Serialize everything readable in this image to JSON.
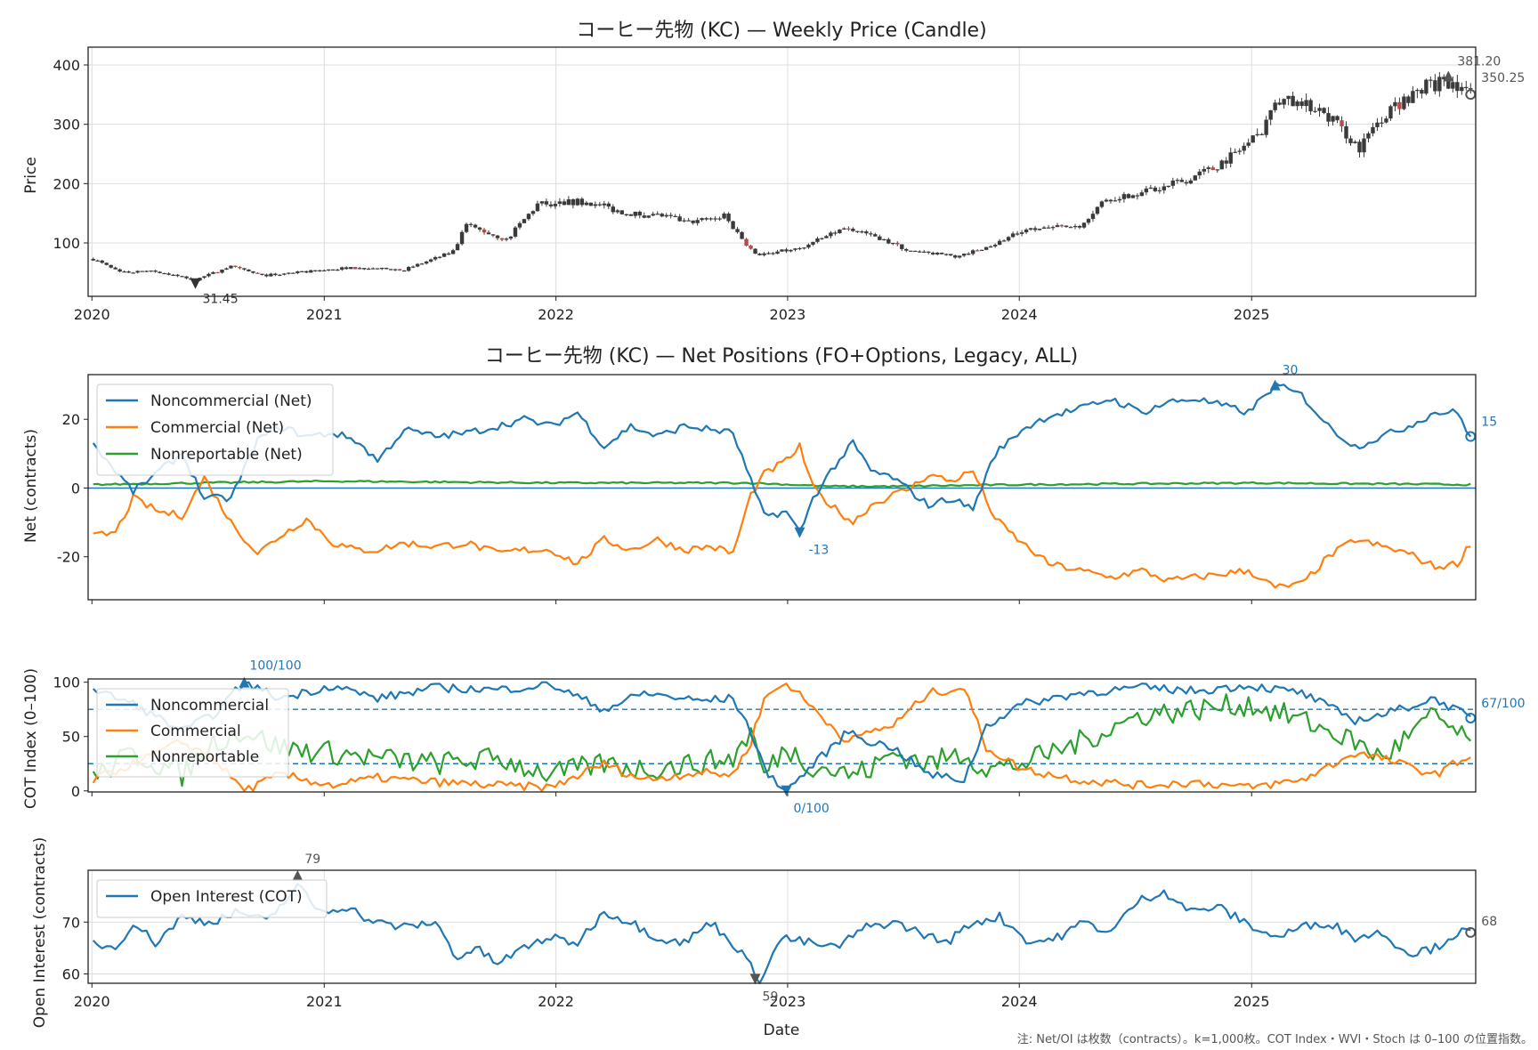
{
  "colors": {
    "noncommercial": "#1f77b4",
    "commercial": "#ff7f0e",
    "nonreportable": "#2ca02c",
    "candle_up": "#2f6f5e",
    "candle_down": "#b84a4a",
    "candle_body": "#3a3a3a",
    "annotation": "#555555",
    "grid": "#dddddd"
  },
  "footnote": "注: Net/OI は枚数（contracts）。k=1,000枚。COT Index・WVI・Stoch は 0–100 の位置指数。",
  "x_axis_label": "Date",
  "chart_data": [
    {
      "type": "candlestick",
      "title": "コーヒー先物 (KC) — Weekly Price (Candle)",
      "ylabel": "Price",
      "xlabel": "",
      "x_tick_labels": [
        "2020",
        "2021",
        "2022",
        "2023",
        "2024",
        "2025"
      ],
      "y_ticks": [
        100,
        200,
        300,
        400
      ],
      "xlim": [
        "2019-12-26",
        "2025-12-20"
      ],
      "ylim": [
        10,
        430
      ],
      "grid": true,
      "anchors": {
        "dates": [
          "2020-01-03",
          "2020-02-14",
          "2020-04-10",
          "2020-06-12",
          "2020-08-07",
          "2020-09-25",
          "2020-11-20",
          "2021-02-05",
          "2021-05-07",
          "2021-07-23",
          "2021-08-13",
          "2021-10-15",
          "2021-12-03",
          "2022-02-18",
          "2022-04-22",
          "2022-06-17",
          "2022-07-29",
          "2022-09-23",
          "2022-11-11",
          "2023-01-20",
          "2023-03-31",
          "2023-05-12",
          "2023-07-14",
          "2023-09-22",
          "2023-11-17",
          "2024-01-05",
          "2024-04-05",
          "2024-05-17",
          "2024-08-09",
          "2024-11-01",
          "2025-01-10",
          "2025-02-14",
          "2025-04-18",
          "2025-06-20",
          "2025-07-25",
          "2025-09-19",
          "2025-11-14",
          "2025-12-12"
        ],
        "closes": [
          73,
          50,
          52,
          38,
          60,
          45,
          50,
          58,
          55,
          85,
          130,
          105,
          165,
          170,
          150,
          145,
          135,
          145,
          80,
          90,
          125,
          115,
          85,
          78,
          95,
          120,
          130,
          175,
          190,
          225,
          280,
          340,
          330,
          260,
          310,
          360,
          375,
          350
        ]
      },
      "annotations": [
        {
          "label": "31.45",
          "date": "2020-06-12",
          "value": 31.45,
          "kind": "min"
        },
        {
          "label": "381.20",
          "date": "2025-11-07",
          "value": 381.2,
          "kind": "max"
        },
        {
          "label": "350.25",
          "date": "2025-12-12",
          "value": 350.25,
          "kind": "last"
        }
      ]
    },
    {
      "type": "line",
      "title": "コーヒー先物 (KC) — Net Positions (FO+Options, Legacy, ALL)",
      "ylabel": "Net (contracts)",
      "y_ticks": [
        -20,
        0,
        20
      ],
      "xlim": [
        "2019-12-26",
        "2025-12-20"
      ],
      "ylim": [
        -32.5,
        33
      ],
      "zero_line": true,
      "legend_position": "upper left",
      "series": [
        {
          "name": "Noncommercial (Net)",
          "color_key": "noncommercial",
          "dates": [
            "2020-01-03",
            "2020-02-07",
            "2020-03-06",
            "2020-04-17",
            "2020-05-22",
            "2020-06-26",
            "2020-08-07",
            "2020-09-18",
            "2020-10-23",
            "2020-12-04",
            "2021-01-15",
            "2021-02-19",
            "2021-03-26",
            "2021-05-07",
            "2021-06-25",
            "2021-08-13",
            "2021-10-01",
            "2021-11-12",
            "2021-12-24",
            "2022-02-04",
            "2022-03-18",
            "2022-04-29",
            "2022-06-10",
            "2022-07-22",
            "2022-09-02",
            "2022-10-07",
            "2022-11-04",
            "2022-11-25",
            "2022-12-30",
            "2023-01-20",
            "2023-02-10",
            "2023-03-10",
            "2023-04-14",
            "2023-05-12",
            "2023-06-16",
            "2023-07-14",
            "2023-08-11",
            "2023-09-15",
            "2023-10-20",
            "2023-11-24",
            "2024-01-05",
            "2024-02-16",
            "2024-04-05",
            "2024-05-24",
            "2024-07-12",
            "2024-08-23",
            "2024-10-04",
            "2024-11-15",
            "2024-12-27",
            "2025-02-07",
            "2025-03-21",
            "2025-05-02",
            "2025-06-13",
            "2025-07-25",
            "2025-09-05",
            "2025-10-17",
            "2025-11-21",
            "2025-12-12"
          ],
          "values": [
            13,
            5,
            -1,
            5,
            10,
            -3,
            -3,
            14,
            18,
            15,
            16,
            14,
            8,
            17,
            15,
            16,
            18,
            20,
            18,
            22,
            12,
            18,
            15,
            18,
            17,
            16,
            2,
            -8,
            -7,
            -13,
            -3,
            5,
            13,
            5,
            3,
            -1,
            -5,
            -3,
            -6,
            10,
            17,
            21,
            23,
            26,
            22,
            25,
            26,
            24,
            22,
            30,
            27,
            18,
            12,
            15,
            18,
            22,
            22,
            15
          ]
        },
        {
          "name": "Commercial (Net)",
          "color_key": "commercial",
          "dates": [
            "2020-01-03",
            "2020-02-07",
            "2020-03-06",
            "2020-04-17",
            "2020-05-22",
            "2020-06-26",
            "2020-08-07",
            "2020-09-18",
            "2020-10-23",
            "2020-12-04",
            "2021-01-15",
            "2021-02-19",
            "2021-03-26",
            "2021-05-07",
            "2021-06-25",
            "2021-08-13",
            "2021-10-01",
            "2021-11-12",
            "2021-12-24",
            "2022-02-04",
            "2022-03-18",
            "2022-04-29",
            "2022-06-10",
            "2022-07-22",
            "2022-09-02",
            "2022-10-07",
            "2022-11-04",
            "2022-11-25",
            "2022-12-30",
            "2023-01-20",
            "2023-02-10",
            "2023-03-10",
            "2023-04-14",
            "2023-05-12",
            "2023-06-16",
            "2023-07-14",
            "2023-08-11",
            "2023-09-15",
            "2023-10-20",
            "2023-11-24",
            "2024-01-05",
            "2024-02-16",
            "2024-04-05",
            "2024-05-24",
            "2024-07-12",
            "2024-08-23",
            "2024-10-04",
            "2024-11-15",
            "2024-12-27",
            "2025-02-07",
            "2025-03-21",
            "2025-05-02",
            "2025-06-13",
            "2025-07-25",
            "2025-09-05",
            "2025-10-17",
            "2025-11-21",
            "2025-12-12"
          ],
          "values": [
            -14,
            -13,
            -3,
            -7,
            -8,
            3,
            -10,
            -19,
            -14,
            -9,
            -16,
            -18,
            -18,
            -16,
            -17,
            -16,
            -19,
            -18,
            -18,
            -22,
            -15,
            -18,
            -15,
            -18,
            -17,
            -19,
            -2,
            4,
            8,
            12,
            0,
            -5,
            -10,
            -5,
            -2,
            0,
            4,
            2,
            5,
            -9,
            -16,
            -22,
            -24,
            -26,
            -24,
            -27,
            -26,
            -25,
            -24,
            -29,
            -28,
            -20,
            -15,
            -17,
            -19,
            -23,
            -22,
            -16
          ]
        },
        {
          "name": "Nonreportable (Net)",
          "color_key": "nonreportable",
          "dates": [
            "2020-01-03",
            "2020-06-26",
            "2021-01-15",
            "2022-01-07",
            "2022-11-04",
            "2023-03-10",
            "2023-06-16",
            "2024-01-05",
            "2025-01-03",
            "2025-12-12"
          ],
          "values": [
            1,
            1.5,
            2,
            1.5,
            1.5,
            0.5,
            0.5,
            1,
            1.5,
            1
          ]
        }
      ],
      "annotations": [
        {
          "label": "30",
          "date": "2025-02-07",
          "value": 30,
          "series": "Noncommercial (Net)"
        },
        {
          "label": "-13",
          "date": "2023-01-20",
          "value": -13,
          "series": "Noncommercial (Net)"
        },
        {
          "label": "15",
          "date": "2025-12-12",
          "value": 15,
          "series": "Noncommercial (Net)"
        }
      ]
    },
    {
      "type": "line",
      "title": "",
      "ylabel": "COT Index (0–100)",
      "y_ticks": [
        0,
        50,
        100
      ],
      "xlim": [
        "2019-12-26",
        "2025-12-20"
      ],
      "ylim": [
        -1,
        103
      ],
      "hlines": [
        25,
        75
      ],
      "legend_position": "upper left",
      "series": [
        {
          "name": "Noncommercial",
          "color_key": "noncommercial",
          "dates": [
            "2020-01-03",
            "2020-03-06",
            "2020-05-22",
            "2020-07-10",
            "2020-08-28",
            "2020-10-23",
            "2021-01-15",
            "2021-03-26",
            "2021-06-25",
            "2021-10-01",
            "2021-12-24",
            "2022-03-18",
            "2022-05-20",
            "2022-08-12",
            "2022-10-07",
            "2022-11-04",
            "2022-11-25",
            "2022-12-30",
            "2023-02-03",
            "2023-04-07",
            "2023-05-12",
            "2023-06-16",
            "2023-08-11",
            "2023-10-06",
            "2023-11-10",
            "2024-01-05",
            "2024-04-05",
            "2024-07-12",
            "2024-10-04",
            "2024-12-27",
            "2025-03-21",
            "2025-06-13",
            "2025-07-25",
            "2025-10-17",
            "2025-12-12"
          ],
          "values": [
            93,
            80,
            55,
            70,
            100,
            85,
            97,
            85,
            95,
            93,
            98,
            75,
            90,
            83,
            85,
            55,
            20,
            0,
            20,
            55,
            45,
            40,
            15,
            10,
            60,
            80,
            90,
            95,
            92,
            97,
            90,
            65,
            70,
            85,
            67
          ]
        },
        {
          "name": "Commercial",
          "color_key": "commercial",
          "dates": [
            "2020-01-03",
            "2020-03-06",
            "2020-05-22",
            "2020-07-10",
            "2020-08-28",
            "2020-10-23",
            "2021-01-15",
            "2021-03-26",
            "2021-06-25",
            "2021-10-01",
            "2021-12-24",
            "2022-03-18",
            "2022-05-20",
            "2022-08-12",
            "2022-10-07",
            "2022-11-04",
            "2022-11-25",
            "2022-12-30",
            "2023-02-03",
            "2023-04-07",
            "2023-05-12",
            "2023-06-16",
            "2023-08-11",
            "2023-10-06",
            "2023-11-10",
            "2024-01-05",
            "2024-04-05",
            "2024-07-12",
            "2024-10-04",
            "2024-12-27",
            "2025-03-21",
            "2025-06-13",
            "2025-07-25",
            "2025-10-17",
            "2025-12-12"
          ],
          "values": [
            10,
            25,
            45,
            30,
            0,
            15,
            5,
            12,
            8,
            5,
            3,
            25,
            10,
            17,
            15,
            45,
            85,
            100,
            80,
            45,
            55,
            60,
            90,
            95,
            40,
            20,
            10,
            5,
            8,
            3,
            10,
            35,
            30,
            15,
            33
          ]
        },
        {
          "name": "Nonreportable",
          "color_key": "nonreportable",
          "dates": [
            "2020-01-03",
            "2020-03-06",
            "2020-05-22",
            "2020-07-10",
            "2020-08-28",
            "2020-10-23",
            "2021-01-15",
            "2021-03-26",
            "2021-06-25",
            "2021-10-01",
            "2021-12-24",
            "2022-03-18",
            "2022-05-20",
            "2022-08-12",
            "2022-10-07",
            "2022-11-04",
            "2022-11-25",
            "2022-12-30",
            "2023-02-03",
            "2023-04-07",
            "2023-05-12",
            "2023-06-16",
            "2023-08-11",
            "2023-10-06",
            "2023-11-10",
            "2024-01-05",
            "2024-04-05",
            "2024-07-12",
            "2024-10-04",
            "2024-12-27",
            "2025-03-21",
            "2025-06-13",
            "2025-07-25",
            "2025-10-17",
            "2025-12-12"
          ],
          "values": [
            12,
            35,
            15,
            45,
            55,
            40,
            35,
            30,
            25,
            30,
            15,
            25,
            20,
            25,
            30,
            55,
            15,
            40,
            25,
            15,
            20,
            35,
            25,
            35,
            20,
            25,
            45,
            70,
            75,
            80,
            65,
            45,
            30,
            70,
            42
          ]
        }
      ],
      "annotations": [
        {
          "label": "100/100",
          "date": "2020-08-28",
          "value": 100,
          "series": "Noncommercial"
        },
        {
          "label": "0/100",
          "date": "2022-12-30",
          "value": 0,
          "series": "Noncommercial"
        },
        {
          "label": "67/100",
          "date": "2025-12-12",
          "value": 67,
          "series": "Noncommercial"
        }
      ]
    },
    {
      "type": "line",
      "title": "",
      "ylabel": "Open Interest (contracts)",
      "xlabel": "Date",
      "x_tick_labels": [
        "2020",
        "2021",
        "2022",
        "2023",
        "2024",
        "2025"
      ],
      "y_ticks": [
        60,
        70
      ],
      "xlim": [
        "2019-12-26",
        "2025-12-20"
      ],
      "ylim": [
        58.2,
        80
      ],
      "legend_position": "upper left",
      "series": [
        {
          "name": "Open Interest (COT)",
          "color_key": "noncommercial",
          "dates": [
            "2020-01-03",
            "2020-02-07",
            "2020-03-06",
            "2020-04-10",
            "2020-05-22",
            "2020-07-03",
            "2020-08-21",
            "2020-10-02",
            "2020-11-20",
            "2020-12-25",
            "2021-02-05",
            "2021-03-19",
            "2021-05-07",
            "2021-06-25",
            "2021-07-30",
            "2021-08-27",
            "2021-10-01",
            "2021-11-12",
            "2021-12-17",
            "2022-02-04",
            "2022-03-18",
            "2022-04-29",
            "2022-06-10",
            "2022-07-22",
            "2022-09-02",
            "2022-10-14",
            "2022-11-18",
            "2022-12-23",
            "2023-02-03",
            "2023-03-17",
            "2023-05-05",
            "2023-06-16",
            "2023-07-28",
            "2023-09-08",
            "2023-10-20",
            "2023-12-01",
            "2024-01-19",
            "2024-03-01",
            "2024-04-12",
            "2024-05-24",
            "2024-07-05",
            "2024-08-16",
            "2024-09-27",
            "2024-11-08",
            "2024-12-20",
            "2025-02-07",
            "2025-03-21",
            "2025-05-02",
            "2025-06-13",
            "2025-07-25",
            "2025-09-05",
            "2025-10-17",
            "2025-11-21",
            "2025-12-12"
          ],
          "values": [
            66,
            65,
            70,
            66,
            71,
            70,
            72,
            70,
            77,
            72,
            73,
            70,
            69,
            70,
            63,
            65,
            62,
            65,
            67,
            66,
            72,
            70,
            67,
            66,
            70,
            65,
            59,
            67,
            66,
            65,
            69,
            70,
            68,
            66,
            70,
            71,
            66,
            67,
            70,
            68,
            74,
            76,
            72,
            73,
            70,
            67,
            69,
            70,
            67,
            68,
            64,
            65,
            68,
            68
          ]
        }
      ],
      "annotations": [
        {
          "label": "79",
          "date": "2020-11-20",
          "value": 79,
          "kind": "max"
        },
        {
          "label": "59",
          "date": "2022-11-11",
          "value": 59,
          "kind": "min"
        },
        {
          "label": "68",
          "date": "2025-12-12",
          "value": 68,
          "kind": "last"
        }
      ]
    }
  ]
}
